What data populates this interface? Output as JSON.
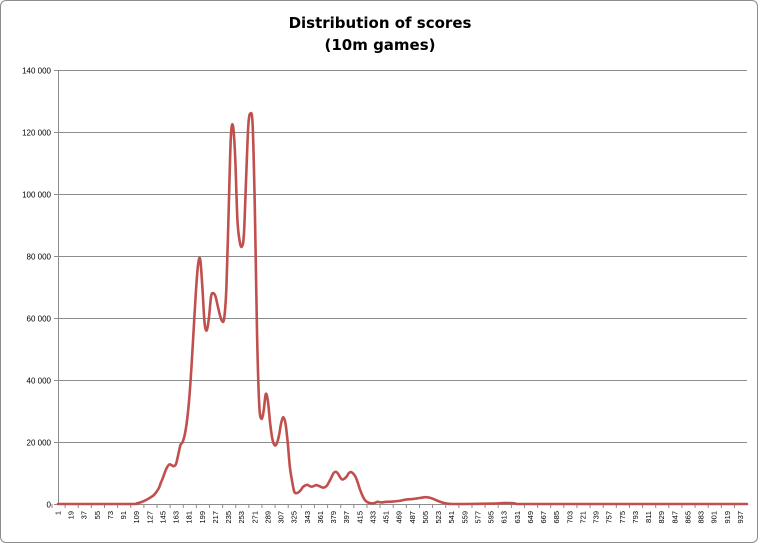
{
  "chart_data": {
    "type": "line",
    "title": "Distribution of scores",
    "subtitle": "(10m games)",
    "xlabel": "",
    "ylabel": "",
    "ylim": [
      0,
      140000
    ],
    "yticks": [
      0,
      20000,
      40000,
      60000,
      80000,
      100000,
      120000,
      140000
    ],
    "ytick_labels": [
      "0",
      "20 000",
      "40 000",
      "60 000",
      "80 000",
      "100 000",
      "120 000",
      "140 000"
    ],
    "x_range": [
      1,
      946
    ],
    "x_tick_start": 1,
    "x_tick_step": 18,
    "x_tick_labels": [
      "1",
      "19",
      "37",
      "55",
      "73",
      "91",
      "109",
      "127",
      "145",
      "163",
      "181",
      "199",
      "217",
      "235",
      "253",
      "271",
      "289",
      "307",
      "325",
      "343",
      "361",
      "379",
      "397",
      "415",
      "433",
      "451",
      "469",
      "487",
      "505",
      "523",
      "541",
      "559",
      "577",
      "595",
      "613",
      "631",
      "649",
      "667",
      "685",
      "703",
      "721",
      "739",
      "757",
      "775",
      "793",
      "811",
      "829",
      "847",
      "865",
      "883",
      "901",
      "919",
      "937"
    ],
    "grid": true,
    "legend": "none",
    "line_color": "#c0504d",
    "series": [
      {
        "x": [
          1,
          100,
          109,
          115,
          121,
          127,
          133,
          139,
          142,
          145,
          148,
          151,
          154,
          157,
          160,
          163,
          166,
          169,
          172,
          175,
          178,
          181,
          184,
          187,
          190,
          193,
          196,
          199,
          202,
          205,
          208,
          211,
          214,
          217,
          220,
          223,
          226,
          229,
          232,
          235,
          238,
          241,
          244,
          247,
          250,
          253,
          256,
          259,
          262,
          265,
          268,
          271,
          274,
          277,
          280,
          283,
          286,
          289,
          292,
          295,
          298,
          301,
          304,
          307,
          310,
          313,
          316,
          319,
          322,
          325,
          328,
          331,
          334,
          337,
          340,
          343,
          346,
          349,
          352,
          355,
          358,
          361,
          364,
          367,
          370,
          373,
          376,
          379,
          382,
          385,
          388,
          391,
          394,
          397,
          400,
          403,
          406,
          409,
          412,
          415,
          418,
          421,
          424,
          427,
          430,
          433,
          436,
          439,
          442,
          445,
          451,
          460,
          469,
          475,
          481,
          487,
          493,
          499,
          505,
          511,
          517,
          523,
          529,
          535,
          541,
          547,
          560,
          600,
          613,
          625,
          631,
          640,
          700,
          800,
          900,
          946
        ],
        "y": [
          0,
          0,
          200,
          600,
          1200,
          2000,
          3000,
          5000,
          6800,
          8500,
          10500,
          12000,
          12800,
          12500,
          12200,
          13000,
          16000,
          19000,
          20000,
          22500,
          27000,
          34000,
          44000,
          56000,
          68000,
          77000,
          79000,
          70000,
          58500,
          56000,
          60000,
          67000,
          68000,
          67000,
          64000,
          61000,
          59000,
          60000,
          70000,
          94000,
          118000,
          122000,
          112000,
          92000,
          85000,
          83000,
          87000,
          105000,
          122000,
          126000,
          122000,
          95000,
          55000,
          32000,
          27500,
          30000,
          35500,
          33000,
          26000,
          21000,
          19000,
          19500,
          22000,
          26000,
          28000,
          26000,
          20000,
          12000,
          7500,
          4000,
          3500,
          3800,
          4500,
          5500,
          6000,
          6200,
          5800,
          5600,
          5800,
          6100,
          5900,
          5600,
          5300,
          5400,
          6000,
          7200,
          8600,
          10000,
          10400,
          9800,
          8600,
          7900,
          8200,
          8900,
          10000,
          10300,
          9800,
          8800,
          7000,
          4800,
          3000,
          1600,
          800,
          400,
          250,
          200,
          400,
          700,
          600,
          500,
          700,
          800,
          1000,
          1300,
          1500,
          1600,
          1800,
          2000,
          2200,
          2000,
          1500,
          900,
          400,
          100,
          0,
          0,
          0,
          150,
          300,
          250,
          0,
          0,
          0,
          0,
          0,
          0
        ]
      }
    ]
  }
}
